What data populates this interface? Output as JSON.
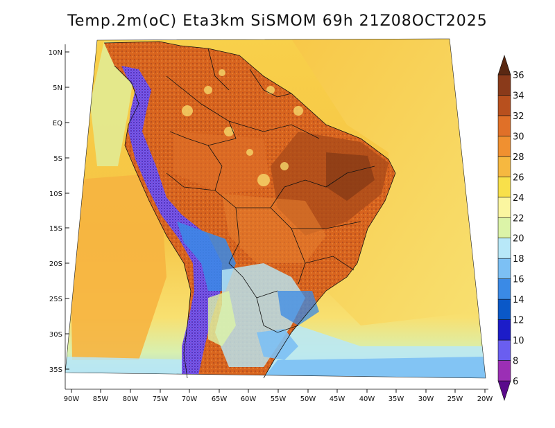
{
  "title": "Temp.2m(oC) Eta3km SiSMOM 69h 21Z08OCT2025",
  "lat_labels": [
    "10N",
    "5N",
    "EQ",
    "5S",
    "10S",
    "15S",
    "20S",
    "25S",
    "30S",
    "35S"
  ],
  "lon_labels": [
    "90W",
    "85W",
    "80W",
    "75W",
    "70W",
    "65W",
    "60W",
    "55W",
    "50W",
    "45W",
    "40W",
    "35W",
    "30W",
    "25W",
    "20W"
  ],
  "colorbar": {
    "labels": [
      "6",
      "8",
      "10",
      "12",
      "14",
      "16",
      "18",
      "20",
      "22",
      "24",
      "26",
      "28",
      "30",
      "32",
      "34",
      "36"
    ],
    "colors": [
      "#5a0a8c",
      "#9b2fb5",
      "#6a5ef0",
      "#1c1cc8",
      "#0a58c8",
      "#3a8ae6",
      "#7cc0f4",
      "#b8e8f8",
      "#dcf4a8",
      "#fbf6a0",
      "#f8e04a",
      "#f6b840",
      "#f09030",
      "#e07028",
      "#b8501e",
      "#8a3a1a",
      "#5a2812"
    ]
  },
  "colors": {
    "ocean_warm": "#f6b840",
    "ocean_mid": "#f8d04a",
    "land_hot": "#d8641e",
    "land_very_hot": "#a84a1a",
    "andes_cold": "#6a2aa8",
    "south_cool": "#7cc0f4"
  }
}
